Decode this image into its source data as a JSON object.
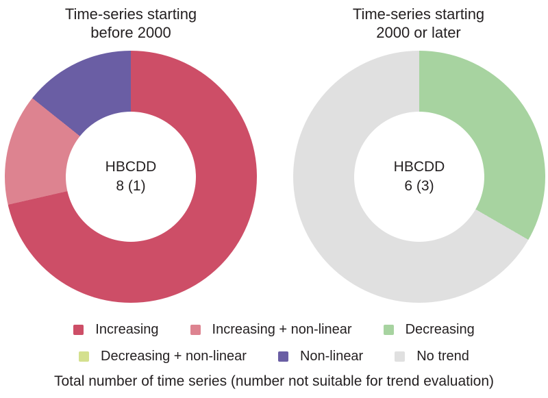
{
  "page": {
    "background": "#ffffff",
    "text_color": "#231f20"
  },
  "chart_data": [
    {
      "type": "pie",
      "subtype": "donut",
      "title_lines": [
        "Time-series starting",
        "before 2000"
      ],
      "center_text": [
        "HBCDD",
        "8 (1)"
      ],
      "total_time_series": 8,
      "not_suitable_for_trend_evaluation": 1,
      "categories": [
        "Increasing",
        "Increasing + non-linear",
        "Non-linear"
      ],
      "values": [
        5,
        1,
        1
      ],
      "start_angle_deg": 0,
      "direction": "clockwise"
    },
    {
      "type": "pie",
      "subtype": "donut",
      "title_lines": [
        "Time-series starting",
        "2000 or later"
      ],
      "center_text": [
        "HBCDD",
        "6 (3)"
      ],
      "total_time_series": 6,
      "not_suitable_for_trend_evaluation": 3,
      "categories": [
        "Decreasing",
        "No trend"
      ],
      "values": [
        1,
        2
      ],
      "start_angle_deg": 0,
      "direction": "clockwise"
    }
  ],
  "legend": {
    "position": "bottom",
    "items": [
      {
        "label": "Increasing",
        "color": "#cd4e67"
      },
      {
        "label": "Increasing + non-linear",
        "color": "#dd8390"
      },
      {
        "label": "Decreasing",
        "color": "#a7d3a0"
      },
      {
        "label": "Decreasing + non-linear",
        "color": "#d4e08e"
      },
      {
        "label": "Non-linear",
        "color": "#6a5ea4"
      },
      {
        "label": "No trend",
        "color": "#e0e0e0"
      }
    ]
  },
  "caption": "Total number of time series (number not suitable for trend evaluation)"
}
